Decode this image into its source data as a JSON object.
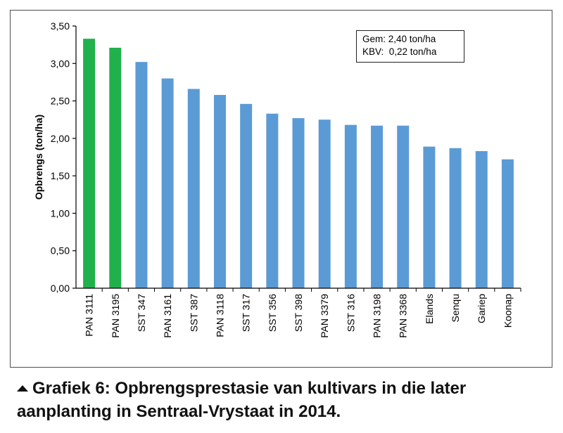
{
  "chart_data": {
    "type": "bar",
    "ylabel": "Opbrengs (ton/ha)",
    "ylim": [
      0,
      3.5
    ],
    "yticks": [
      "0,00",
      "0,50",
      "1,00",
      "1,50",
      "2,00",
      "2,50",
      "3,00",
      "3,50"
    ],
    "ytick_values": [
      0,
      0.5,
      1.0,
      1.5,
      2.0,
      2.5,
      3.0,
      3.5
    ],
    "categories": [
      "PAN 3111",
      "PAN 3195",
      "SST 347",
      "PAN 3161",
      "SST 387",
      "PAN 3118",
      "SST 317",
      "SST 356",
      "SST 398",
      "PAN 3379",
      "SST 316",
      "PAN 3198",
      "PAN 3368",
      "Elands",
      "Senqu",
      "Gariep",
      "Koonap"
    ],
    "values": [
      3.33,
      3.21,
      3.02,
      2.8,
      2.66,
      2.58,
      2.46,
      2.33,
      2.27,
      2.25,
      2.18,
      2.17,
      2.17,
      1.89,
      1.87,
      1.83,
      1.72
    ],
    "bar_colors": [
      "#21b14c",
      "#21b14c",
      "#5b9bd5",
      "#5b9bd5",
      "#5b9bd5",
      "#5b9bd5",
      "#5b9bd5",
      "#5b9bd5",
      "#5b9bd5",
      "#5b9bd5",
      "#5b9bd5",
      "#5b9bd5",
      "#5b9bd5",
      "#5b9bd5",
      "#5b9bd5",
      "#5b9bd5",
      "#5b9bd5"
    ],
    "grid": false,
    "legend": {
      "position": "top-right",
      "lines": [
        "Gem: 2,40 ton/ha",
        "KBV:  0,22 ton/ha"
      ]
    }
  },
  "caption": {
    "line1": "Grafiek 6: Opbrengsprestasie van kultivars in die later",
    "line2": "aanplanting in Sentraal-Vrystaat in 2014."
  }
}
